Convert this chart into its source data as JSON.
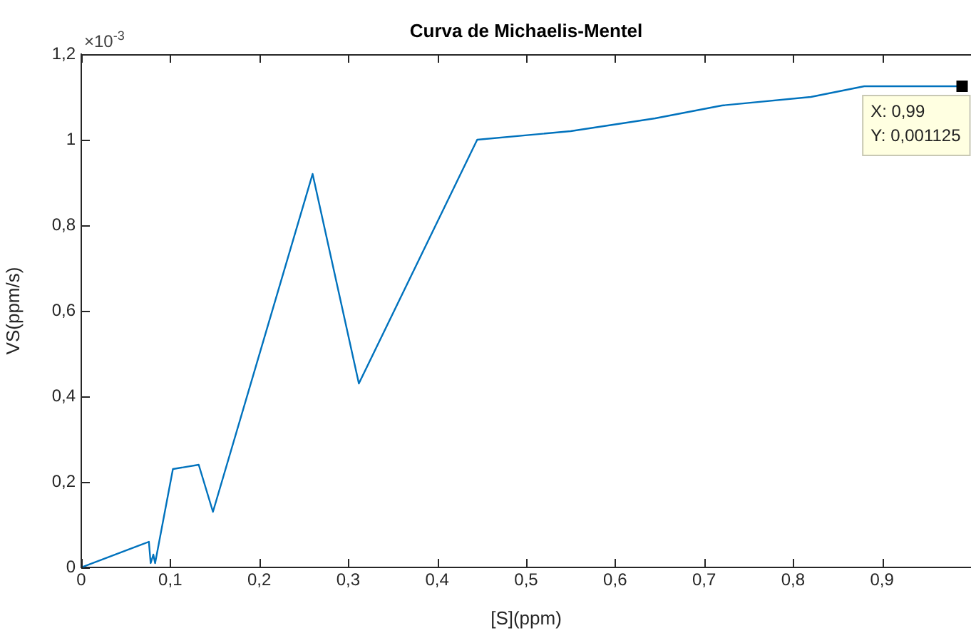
{
  "chart_data": {
    "type": "line",
    "title": "Curva de Michaelis-Mentel",
    "xlabel": "[S](ppm)",
    "ylabel": "VS(ppm/s)",
    "x": [
      0,
      0.076,
      0.078,
      0.081,
      0.083,
      0.103,
      0.132,
      0.148,
      0.26,
      0.312,
      0.445,
      0.55,
      0.645,
      0.72,
      0.82,
      0.88,
      0.99
    ],
    "series": [
      {
        "color": "#0072bd",
        "values": [
          0,
          0.06,
          0.01,
          0.03,
          0.01,
          0.23,
          0.24,
          0.13,
          0.92,
          0.43,
          1,
          1.02,
          1.05,
          1.08,
          1.1,
          1.125,
          1.125
        ]
      }
    ],
    "xlim": [
      0,
      1
    ],
    "ylim": [
      0,
      1.2
    ],
    "xticks": [
      {
        "value": 0,
        "label": "0"
      },
      {
        "value": 0.1,
        "label": "0,1"
      },
      {
        "value": 0.2,
        "label": "0,2"
      },
      {
        "value": 0.3,
        "label": "0,3"
      },
      {
        "value": 0.4,
        "label": "0,4"
      },
      {
        "value": 0.5,
        "label": "0,5"
      },
      {
        "value": 0.6,
        "label": "0,6"
      },
      {
        "value": 0.7,
        "label": "0,7"
      },
      {
        "value": 0.8,
        "label": "0,8"
      },
      {
        "value": 0.9,
        "label": "0,9"
      }
    ],
    "yticks": [
      {
        "value": 0,
        "label": "0"
      },
      {
        "value": 0.2,
        "label": "0,2"
      },
      {
        "value": 0.4,
        "label": "0,4"
      },
      {
        "value": 0.6,
        "label": "0,6"
      },
      {
        "value": 0.8,
        "label": "0,8"
      },
      {
        "value": 1,
        "label": "1"
      },
      {
        "value": 1.2,
        "label": "1,2"
      }
    ],
    "annotations": [
      "×10$^{-3}$",
      {
        "text": "X: 0,99\nY: 0,001125",
        "x": 0.99,
        "y": 1.125
      }
    ],
    "grid": false,
    "legend": false,
    "marker": "none",
    "line_style": "solid"
  }
}
